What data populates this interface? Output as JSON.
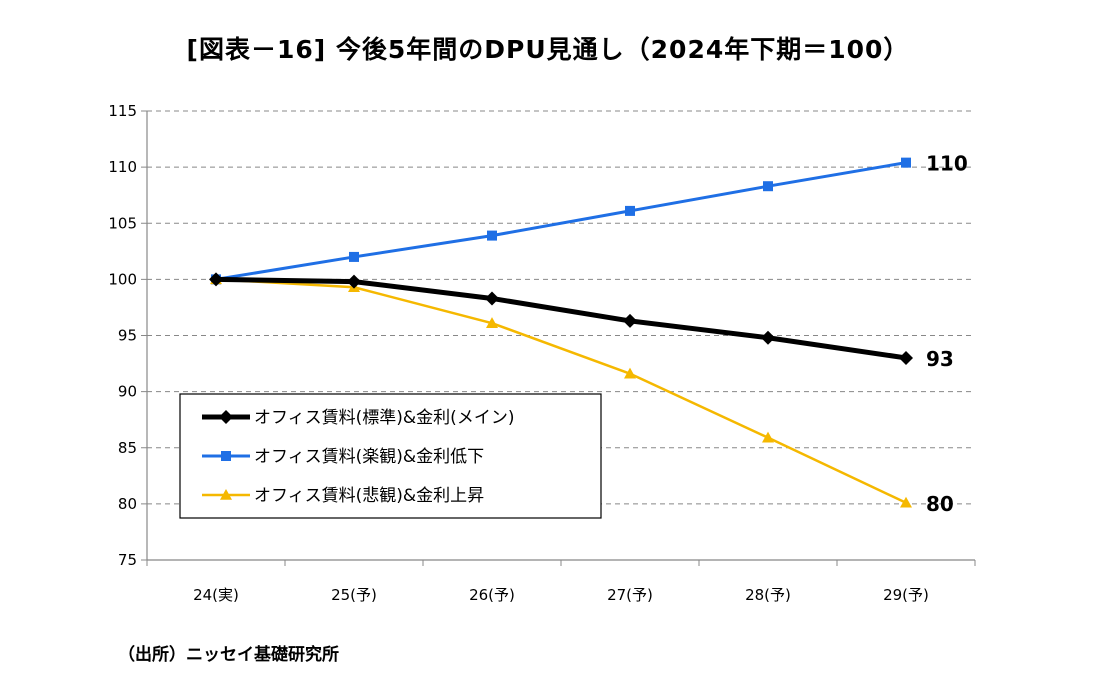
{
  "title": "[図表－16]  今後5年間のDPU見通し（2024年下期＝100）",
  "source": "（出所）ニッセイ基礎研究所",
  "chart_data": {
    "type": "line",
    "categories": [
      "24(実)",
      "25(予)",
      "26(予)",
      "27(予)",
      "28(予)",
      "29(予)"
    ],
    "ylim": [
      75,
      115
    ],
    "yticks": [
      75,
      80,
      85,
      90,
      95,
      100,
      105,
      110,
      115
    ],
    "grid": "horizontal-dashed",
    "legend_position": "bottom-left",
    "series": [
      {
        "name": "オフィス賃料(標準)&金利(メイン)",
        "values": [
          100,
          99.8,
          98.3,
          96.3,
          94.8,
          93.0
        ],
        "color": "#000000",
        "marker": "diamond",
        "end_label": "93"
      },
      {
        "name": "オフィス賃料(楽観)&金利低下",
        "values": [
          100,
          102.0,
          103.9,
          106.1,
          108.3,
          110.4
        ],
        "color": "#1F6FE5",
        "marker": "square",
        "end_label": "110"
      },
      {
        "name": "オフィス賃料(悲観)&金利上昇",
        "values": [
          100,
          99.3,
          96.1,
          91.6,
          85.9,
          80.1
        ],
        "color": "#F5B800",
        "marker": "triangle",
        "end_label": "80"
      }
    ]
  }
}
